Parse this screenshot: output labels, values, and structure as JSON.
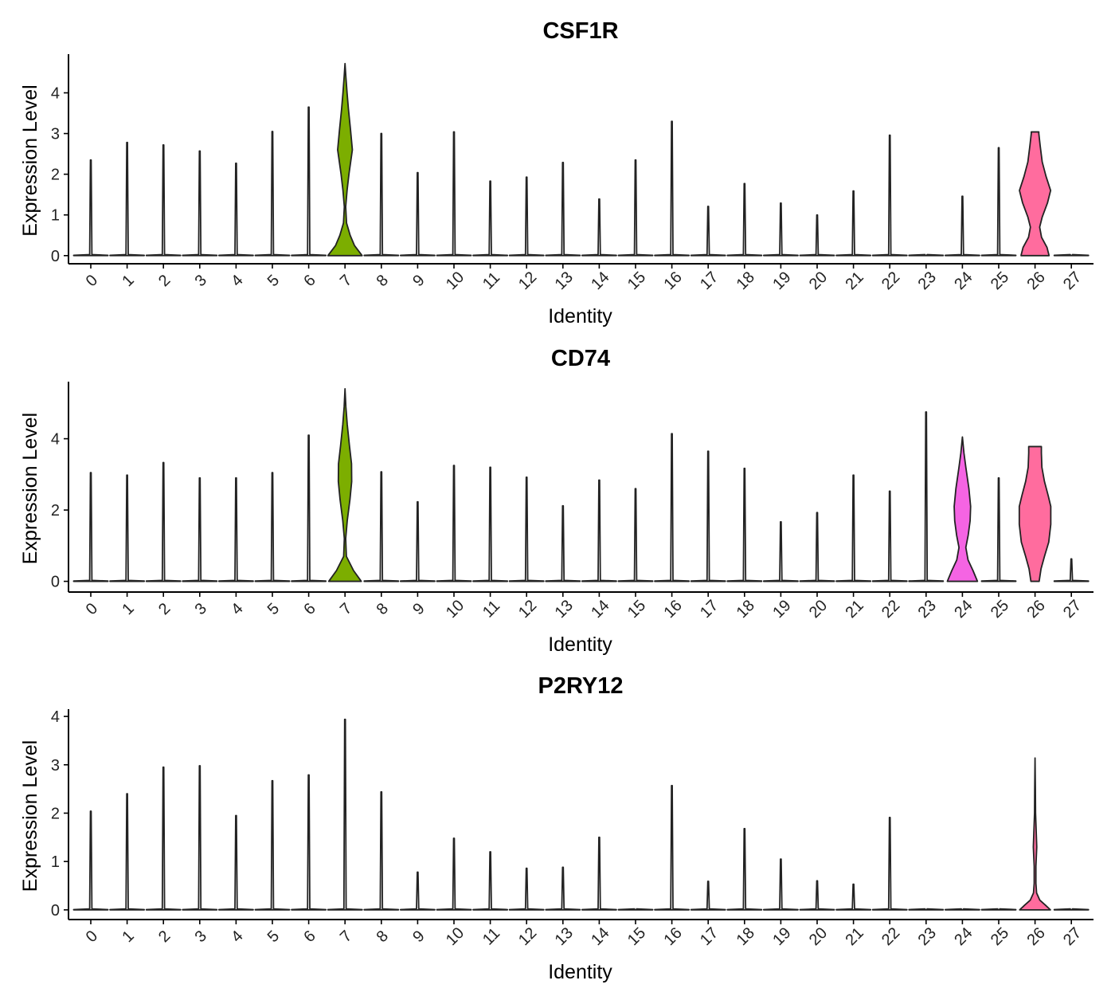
{
  "chart_data": [
    {
      "type": "violin",
      "title": "CSF1R",
      "xlabel": "Identity",
      "ylabel": "Expression Level",
      "categories": [
        "0",
        "1",
        "2",
        "3",
        "4",
        "5",
        "6",
        "7",
        "8",
        "9",
        "10",
        "11",
        "12",
        "13",
        "14",
        "15",
        "16",
        "17",
        "18",
        "19",
        "20",
        "21",
        "22",
        "23",
        "24",
        "25",
        "26",
        "27"
      ],
      "ylim": [
        -0.2,
        4.95
      ],
      "yticks": [
        0,
        1,
        2,
        3,
        4
      ],
      "max_values": [
        2.35,
        2.78,
        2.72,
        2.57,
        2.27,
        3.05,
        3.65,
        4.72,
        3.0,
        2.04,
        3.04,
        1.83,
        1.93,
        2.29,
        1.39,
        2.35,
        3.3,
        1.21,
        1.77,
        1.29,
        1.0,
        1.59,
        2.96,
        0,
        1.46,
        2.65,
        3.04,
        0
      ],
      "colors": {
        "7": "#7CAE00",
        "26": "#FF6C9E"
      },
      "shaped": {
        "7": [
          [
            0,
            1
          ],
          [
            0.25,
            0.55
          ],
          [
            0.5,
            0.3
          ],
          [
            0.8,
            0.09
          ],
          [
            1.2,
            0.04
          ],
          [
            1.6,
            0.12
          ],
          [
            2.0,
            0.23
          ],
          [
            2.6,
            0.43
          ],
          [
            3.1,
            0.32
          ],
          [
            3.6,
            0.2
          ],
          [
            4.0,
            0.12
          ],
          [
            4.4,
            0.05
          ],
          [
            4.72,
            0
          ]
        ],
        "26": [
          [
            0,
            0.82
          ],
          [
            0.2,
            0.7
          ],
          [
            0.45,
            0.38
          ],
          [
            0.7,
            0.27
          ],
          [
            0.95,
            0.42
          ],
          [
            1.3,
            0.73
          ],
          [
            1.6,
            0.91
          ],
          [
            1.95,
            0.64
          ],
          [
            2.3,
            0.42
          ],
          [
            2.7,
            0.3
          ],
          [
            3.0,
            0.22
          ],
          [
            3.04,
            0.22
          ]
        ]
      }
    },
    {
      "type": "violin",
      "title": "CD74",
      "xlabel": "Identity",
      "ylabel": "Expression Level",
      "categories": [
        "0",
        "1",
        "2",
        "3",
        "4",
        "5",
        "6",
        "7",
        "8",
        "9",
        "10",
        "11",
        "12",
        "13",
        "14",
        "15",
        "16",
        "17",
        "18",
        "19",
        "20",
        "21",
        "22",
        "23",
        "24",
        "25",
        "26",
        "27"
      ],
      "ylim": [
        -0.3,
        5.6
      ],
      "yticks": [
        0,
        2,
        4
      ],
      "max_values": [
        3.05,
        2.98,
        3.33,
        2.9,
        2.9,
        3.05,
        4.1,
        5.4,
        3.07,
        2.23,
        3.25,
        3.2,
        2.92,
        2.12,
        2.84,
        2.6,
        4.14,
        3.65,
        3.17,
        1.67,
        1.93,
        2.98,
        2.53,
        4.75,
        4.05,
        2.9,
        3.78,
        0.63
      ],
      "colors": {
        "7": "#7CAE00",
        "24": "#F564E3",
        "26": "#FF6C9E"
      },
      "shaped": {
        "7": [
          [
            0,
            0.95
          ],
          [
            0.3,
            0.5
          ],
          [
            0.7,
            0.08
          ],
          [
            1.2,
            0.04
          ],
          [
            1.7,
            0.13
          ],
          [
            2.3,
            0.29
          ],
          [
            2.8,
            0.39
          ],
          [
            3.3,
            0.38
          ],
          [
            3.8,
            0.26
          ],
          [
            4.4,
            0.13
          ],
          [
            4.9,
            0.05
          ],
          [
            5.4,
            0
          ]
        ],
        "24": [
          [
            0,
            0.88
          ],
          [
            0.3,
            0.62
          ],
          [
            0.6,
            0.33
          ],
          [
            0.95,
            0.2
          ],
          [
            1.3,
            0.34
          ],
          [
            1.7,
            0.45
          ],
          [
            2.1,
            0.48
          ],
          [
            2.6,
            0.38
          ],
          [
            3.2,
            0.2
          ],
          [
            3.6,
            0.09
          ],
          [
            4.05,
            0
          ]
        ],
        "26": [
          [
            0,
            0.24
          ],
          [
            0.35,
            0.35
          ],
          [
            0.7,
            0.55
          ],
          [
            1.1,
            0.8
          ],
          [
            1.6,
            0.92
          ],
          [
            2.1,
            0.92
          ],
          [
            2.4,
            0.77
          ],
          [
            2.8,
            0.55
          ],
          [
            3.2,
            0.4
          ],
          [
            3.6,
            0.37
          ],
          [
            3.78,
            0.37
          ]
        ]
      }
    },
    {
      "type": "violin",
      "title": "P2RY12",
      "xlabel": "Identity",
      "ylabel": "Expression Level",
      "categories": [
        "0",
        "1",
        "2",
        "3",
        "4",
        "5",
        "6",
        "7",
        "8",
        "9",
        "10",
        "11",
        "12",
        "13",
        "14",
        "15",
        "16",
        "17",
        "18",
        "19",
        "20",
        "21",
        "22",
        "23",
        "24",
        "25",
        "26",
        "27"
      ],
      "ylim": [
        -0.2,
        4.15
      ],
      "yticks": [
        0,
        1,
        2,
        3,
        4
      ],
      "max_values": [
        2.04,
        2.4,
        2.95,
        2.98,
        1.95,
        2.67,
        2.79,
        3.94,
        2.44,
        0.78,
        1.48,
        1.2,
        0.86,
        0.88,
        1.5,
        0,
        2.57,
        0.59,
        1.68,
        1.05,
        0.6,
        0.53,
        1.91,
        0,
        0,
        0,
        3.14,
        0
      ],
      "colors": {
        "26": "#FF6C9E"
      },
      "shaped": {
        "26": [
          [
            0,
            0.9
          ],
          [
            0.1,
            0.6
          ],
          [
            0.2,
            0.28
          ],
          [
            0.35,
            0.09
          ],
          [
            0.55,
            0.05
          ],
          [
            0.9,
            0.05
          ],
          [
            1.3,
            0.1
          ],
          [
            1.6,
            0.07
          ],
          [
            2.0,
            0.03
          ],
          [
            2.5,
            0.02
          ],
          [
            3.14,
            0
          ]
        ]
      }
    }
  ]
}
